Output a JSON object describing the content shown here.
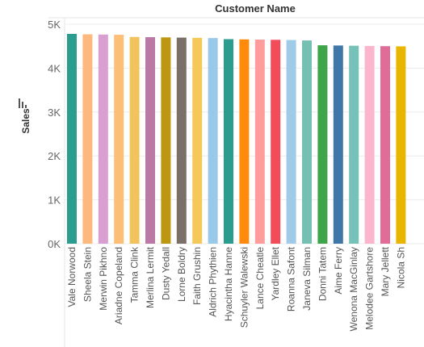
{
  "chart_data": {
    "type": "bar",
    "title": "Customer Name",
    "xlabel": "",
    "ylabel": "Sales",
    "ylim": [
      0,
      5000
    ],
    "yticks": [
      {
        "value": 0,
        "label": "0K"
      },
      {
        "value": 1000,
        "label": "1K"
      },
      {
        "value": 2000,
        "label": "2K"
      },
      {
        "value": 3000,
        "label": "3K"
      },
      {
        "value": 4000,
        "label": "4K"
      },
      {
        "value": 5000,
        "label": "5K"
      }
    ],
    "grid": true,
    "categories": [
      "Vale Norwood",
      "Sheela Stein",
      "Merwin Pikhno",
      "Ariadne Copeland",
      "Tamma Clink",
      "Merlina Lermit",
      "Dusty Yedall",
      "Lorne Boldry",
      "Faith Grushin",
      "Aldrich Phythien",
      "Hyacintha Hanne",
      "Schuyler Walewski",
      "Lance Cheatle",
      "Yardley Ellet",
      "Roanna Safont",
      "Janeva Silman",
      "Donni Tatem",
      "Aime Ferry",
      "Wenona MacGinlay",
      "Melodee Gartshore",
      "Mary Jellett",
      "Nicola Sh"
    ],
    "values": [
      4780,
      4770,
      4765,
      4760,
      4710,
      4705,
      4700,
      4695,
      4690,
      4685,
      4660,
      4655,
      4650,
      4645,
      4640,
      4630,
      4520,
      4515,
      4510,
      4505,
      4500,
      4495
    ],
    "colors": [
      "#2a9d8f",
      "#fdb97d",
      "#d99fd0",
      "#fdbe76",
      "#f2c35c",
      "#bb79a6",
      "#bc970f",
      "#7b6f6a",
      "#f5c85a",
      "#98c9e8",
      "#2a9d8f",
      "#ff8a0b",
      "#fe9d9b",
      "#f24b5a",
      "#9fcbe8",
      "#76bfb3",
      "#3ea54b",
      "#3f78a8",
      "#77c2b8",
      "#fbb6cd",
      "#e26c98",
      "#e8b500"
    ]
  }
}
